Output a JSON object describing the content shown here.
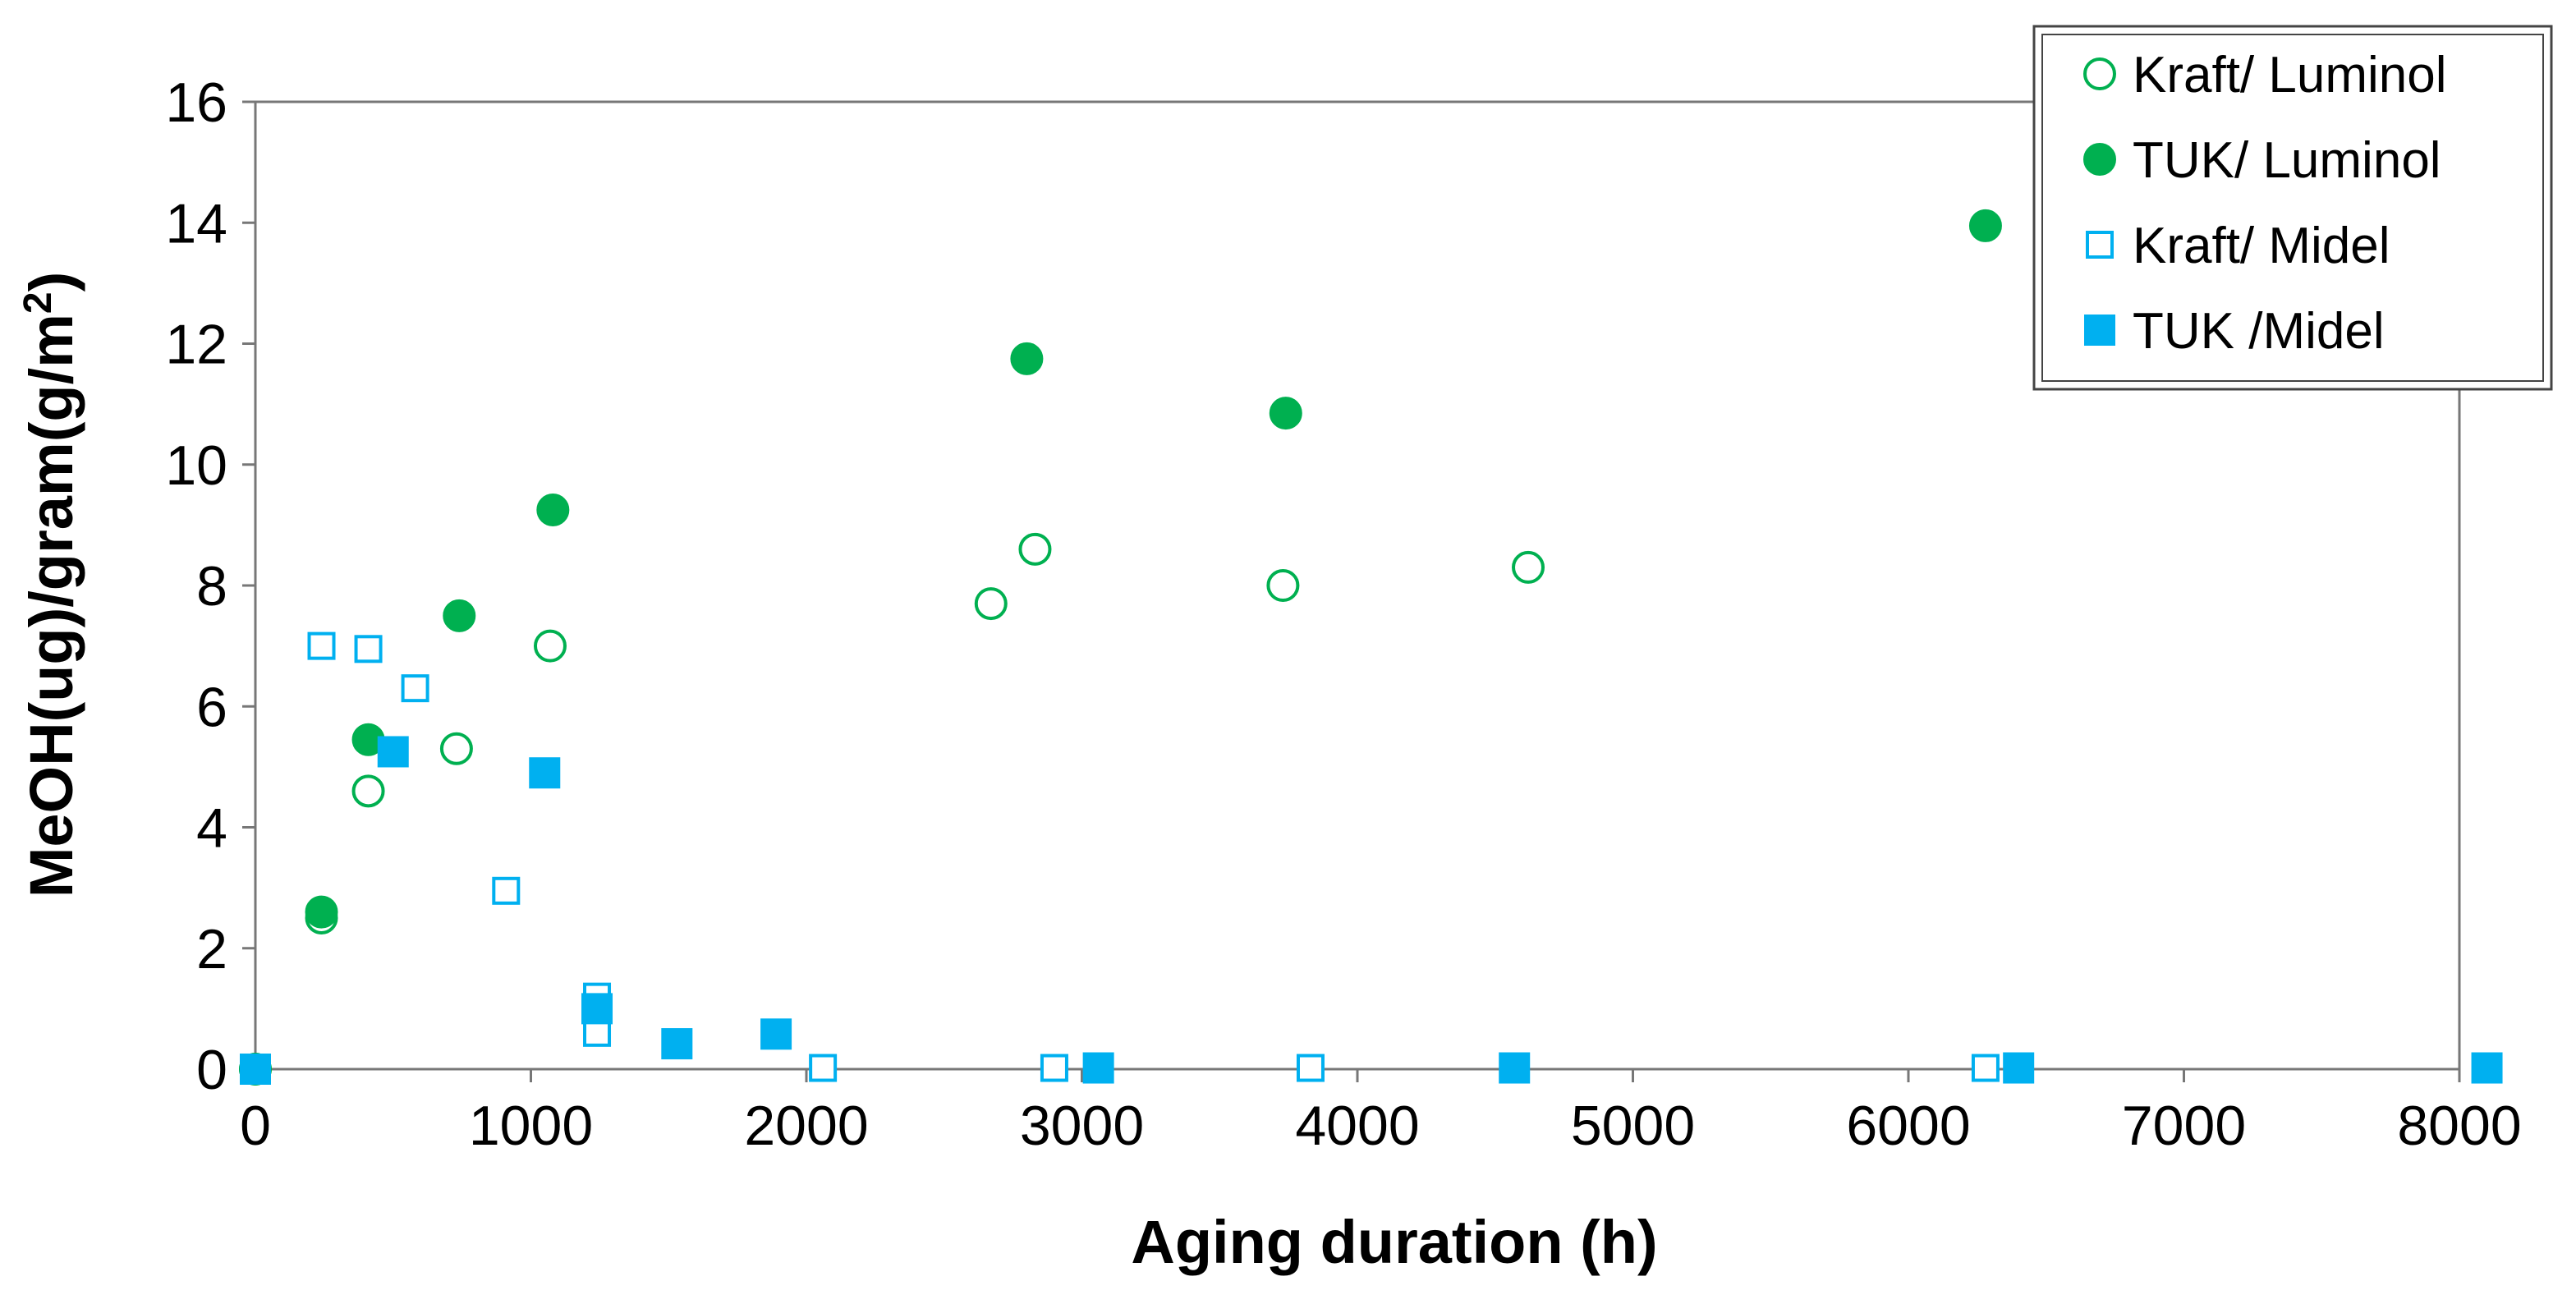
{
  "chart_data": {
    "type": "scatter",
    "title": "",
    "xlabel": "Aging duration (h)",
    "ylabel_main": "MeOH(ug)/gram(g/m",
    "ylabel_sup": "2",
    "ylabel_end": ")",
    "xlim": [
      0,
      8000
    ],
    "ylim": [
      0,
      16
    ],
    "xticks": [
      "0",
      "1000",
      "2000",
      "3000",
      "4000",
      "5000",
      "6000",
      "7000",
      "8000"
    ],
    "yticks": [
      "0",
      "2",
      "4",
      "6",
      "8",
      "10",
      "12",
      "14",
      "16"
    ],
    "grid": false,
    "legend_position": "top-right",
    "series": [
      {
        "name": "Kraft/ Luminol",
        "color": "#00b050",
        "marker": "circle-open",
        "points": [
          [
            0,
            0
          ],
          [
            240,
            2.5
          ],
          [
            410,
            4.6
          ],
          [
            730,
            5.3
          ],
          [
            1070,
            7.0
          ],
          [
            2670,
            7.7
          ],
          [
            2830,
            8.6
          ],
          [
            3730,
            8.0
          ],
          [
            4620,
            8.3
          ]
        ]
      },
      {
        "name": "TUK/ Luminol",
        "color": "#00b050",
        "marker": "circle-filled",
        "points": [
          [
            0,
            0
          ],
          [
            240,
            2.6
          ],
          [
            410,
            5.45
          ],
          [
            740,
            7.5
          ],
          [
            1080,
            9.25
          ],
          [
            2800,
            11.75
          ],
          [
            3740,
            10.85
          ],
          [
            6280,
            13.95
          ]
        ]
      },
      {
        "name": "Kraft/ Midel",
        "color": "#00b0f0",
        "marker": "square-open",
        "points": [
          [
            0,
            0
          ],
          [
            240,
            7.0
          ],
          [
            410,
            6.95
          ],
          [
            580,
            6.3
          ],
          [
            910,
            2.95
          ],
          [
            1240,
            1.2
          ],
          [
            1240,
            0.6
          ],
          [
            2060,
            0.02
          ],
          [
            2900,
            0.02
          ],
          [
            3830,
            0.02
          ],
          [
            6280,
            0.02
          ]
        ]
      },
      {
        "name": "TUK /Midel",
        "color": "#00b0f0",
        "marker": "square-filled",
        "points": [
          [
            0,
            0
          ],
          [
            500,
            5.25
          ],
          [
            1050,
            4.9
          ],
          [
            1240,
            1.0
          ],
          [
            1530,
            0.42
          ],
          [
            1890,
            0.58
          ],
          [
            3060,
            0.02
          ],
          [
            4570,
            0.02
          ],
          [
            6400,
            0.02
          ],
          [
            8100,
            0.02
          ]
        ]
      }
    ]
  }
}
